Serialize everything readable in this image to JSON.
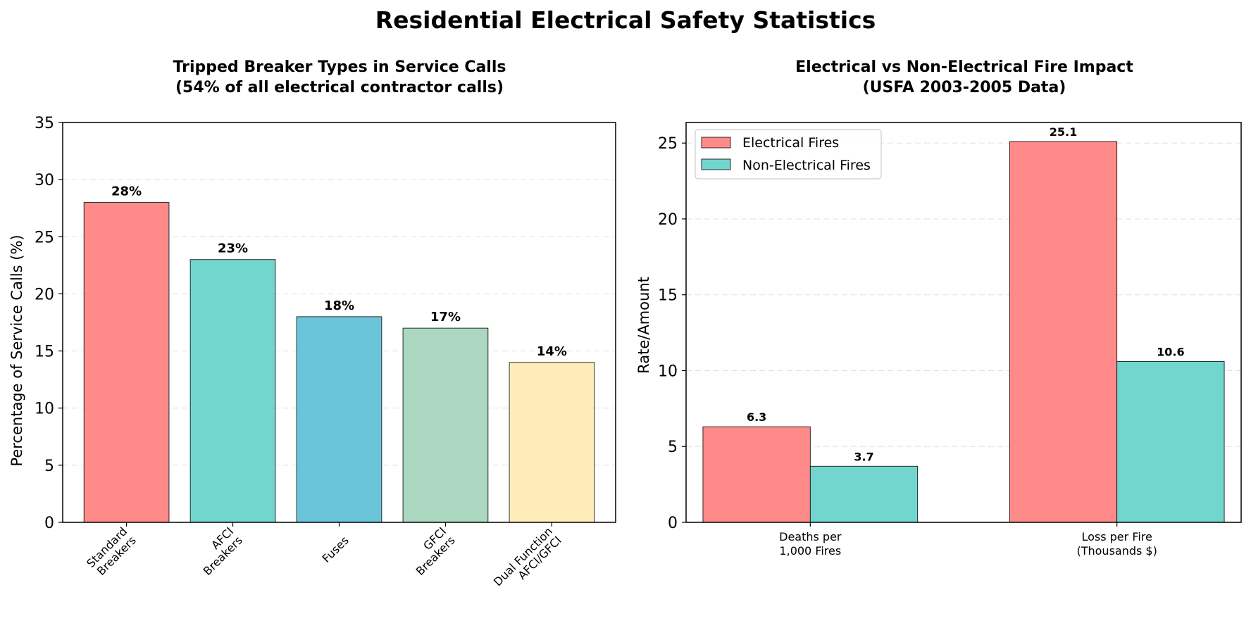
{
  "figure": {
    "suptitle": "Residential Electrical Safety Statistics"
  },
  "chart_data": [
    {
      "type": "bar",
      "title_line1": "Tripped Breaker Types in Service Calls",
      "title_line2": "(54% of all electrical contractor calls)",
      "xlabel": "",
      "ylabel": "Percentage of Service Calls (%)",
      "ylim": [
        0,
        35
      ],
      "yticks": [
        0,
        5,
        10,
        15,
        20,
        25,
        30,
        35
      ],
      "grid": true,
      "categories": [
        [
          "Standard",
          "Breakers"
        ],
        [
          "AFCI",
          "Breakers"
        ],
        [
          "Fuses"
        ],
        [
          "GFCI",
          "Breakers"
        ],
        [
          "Dual Function",
          "AFCI/GFCI"
        ]
      ],
      "values": [
        28,
        23,
        18,
        17,
        14
      ],
      "value_labels": [
        "28%",
        "23%",
        "18%",
        "17%",
        "14%"
      ],
      "colors": [
        "#ff8a8a",
        "#72d6cf",
        "#6ac4da",
        "#acd8c2",
        "#ffecb8"
      ]
    },
    {
      "type": "bar",
      "title_line1": "Electrical vs Non-Electrical Fire Impact",
      "title_line2": "(USFA 2003-2005 Data)",
      "xlabel": "",
      "ylabel": "Rate/Amount",
      "ylim": [
        0,
        26.355
      ],
      "yticks": [
        0,
        5,
        10,
        15,
        20,
        25
      ],
      "grid": true,
      "legend_position": "top-left",
      "categories": [
        [
          "Deaths per",
          "1,000 Fires"
        ],
        [
          "Loss per Fire",
          "(Thousands $)"
        ]
      ],
      "series": [
        {
          "name": "Electrical Fires",
          "values": [
            6.3,
            25.1
          ],
          "labels": [
            "6.3",
            "25.1"
          ],
          "color": "#ff8a8a"
        },
        {
          "name": "Non-Electrical Fires",
          "values": [
            3.7,
            10.6
          ],
          "labels": [
            "3.7",
            "10.6"
          ],
          "color": "#72d6cf"
        }
      ]
    }
  ]
}
